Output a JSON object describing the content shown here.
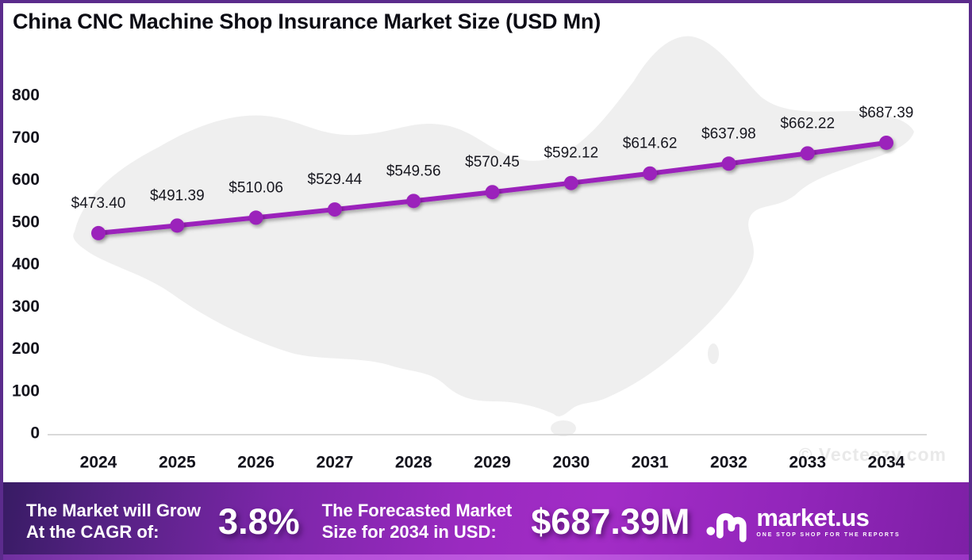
{
  "title": "China CNC Machine Shop Insurance Market Size (USD Mn)",
  "watermark": "© Vecteezy.com",
  "colors": {
    "line": "#9b20bb",
    "frame_border": "#5b2b8c",
    "footer_purple": "#a02cc6",
    "map_fill": "#efefef",
    "axis_line": "#d9d9d9"
  },
  "chart_data": {
    "type": "line",
    "title": "China CNC Machine Shop Insurance Market Size (USD Mn)",
    "x": [
      2024,
      2025,
      2026,
      2027,
      2028,
      2029,
      2030,
      2031,
      2032,
      2033,
      2034
    ],
    "values": [
      473.4,
      491.39,
      510.06,
      529.44,
      549.56,
      570.45,
      592.12,
      614.62,
      637.98,
      662.22,
      687.39
    ],
    "point_labels": [
      "$473.40",
      "$491.39",
      "$510.06",
      "$529.44",
      "$549.56",
      "$570.45",
      "$592.12",
      "$614.62",
      "$637.98",
      "$662.22",
      "$687.39"
    ],
    "xlabel": "",
    "ylabel": "",
    "ylim": [
      0,
      800
    ],
    "yticks": [
      0,
      100,
      200,
      300,
      400,
      500,
      600,
      700,
      800
    ],
    "grid": false,
    "legend": null,
    "line_color": "#9b20bb",
    "marker": "circle"
  },
  "footer": {
    "cagr_line1": "The Market will Grow",
    "cagr_line2": "At the CAGR of:",
    "cagr_value": "3.8%",
    "fc_line1": "The Forecasted Market",
    "fc_line2": "Size for 2034 in USD:",
    "fc_value": "$687.39M",
    "logo_text": "market.us",
    "logo_tagline": "ONE STOP SHOP FOR THE REPORTS"
  }
}
